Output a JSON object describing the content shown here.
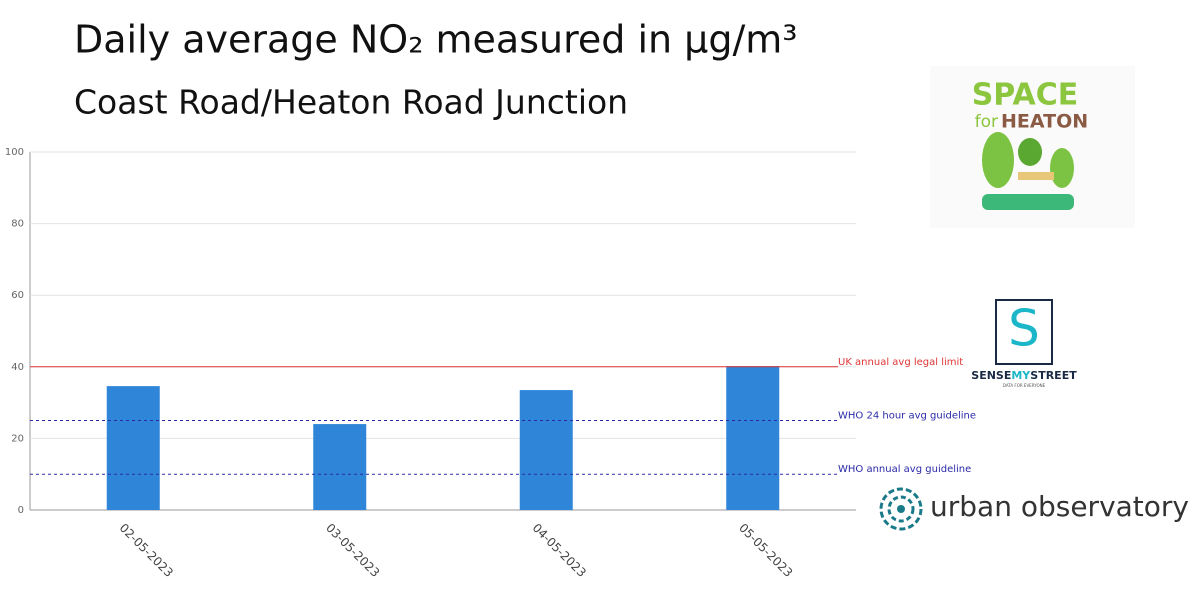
{
  "chart_data": {
    "type": "bar",
    "title": "Daily average NO₂ measured in µg/m³",
    "subtitle": "Coast Road/Heaton Road Junction",
    "categories": [
      "02-05-2023",
      "03-05-2023",
      "04-05-2023",
      "05-05-2023"
    ],
    "values": [
      34.6,
      24.0,
      33.5,
      40.2
    ],
    "color": "#2f86d9",
    "ylim": [
      0,
      100
    ],
    "yticks": [
      0,
      20,
      40,
      60,
      80,
      100
    ],
    "grid": true,
    "reference_lines": [
      {
        "value": 40,
        "label": "UK annual avg legal limit",
        "color": "#e03535",
        "dashed": false
      },
      {
        "value": 25,
        "label": "WHO 24 hour avg guideline",
        "color": "#2a2aa8",
        "dashed": true
      },
      {
        "value": 10,
        "label": "WHO annual avg guideline",
        "color": "#2a2aa8",
        "dashed": true
      }
    ]
  },
  "logos": {
    "space": "SPACE",
    "for": "for",
    "heaton": "HEATON",
    "sense": "SENSE",
    "my": "MY",
    "street": "STREET",
    "tagline": "DATA FOR EVERYONE",
    "urban": "urban observatory"
  }
}
